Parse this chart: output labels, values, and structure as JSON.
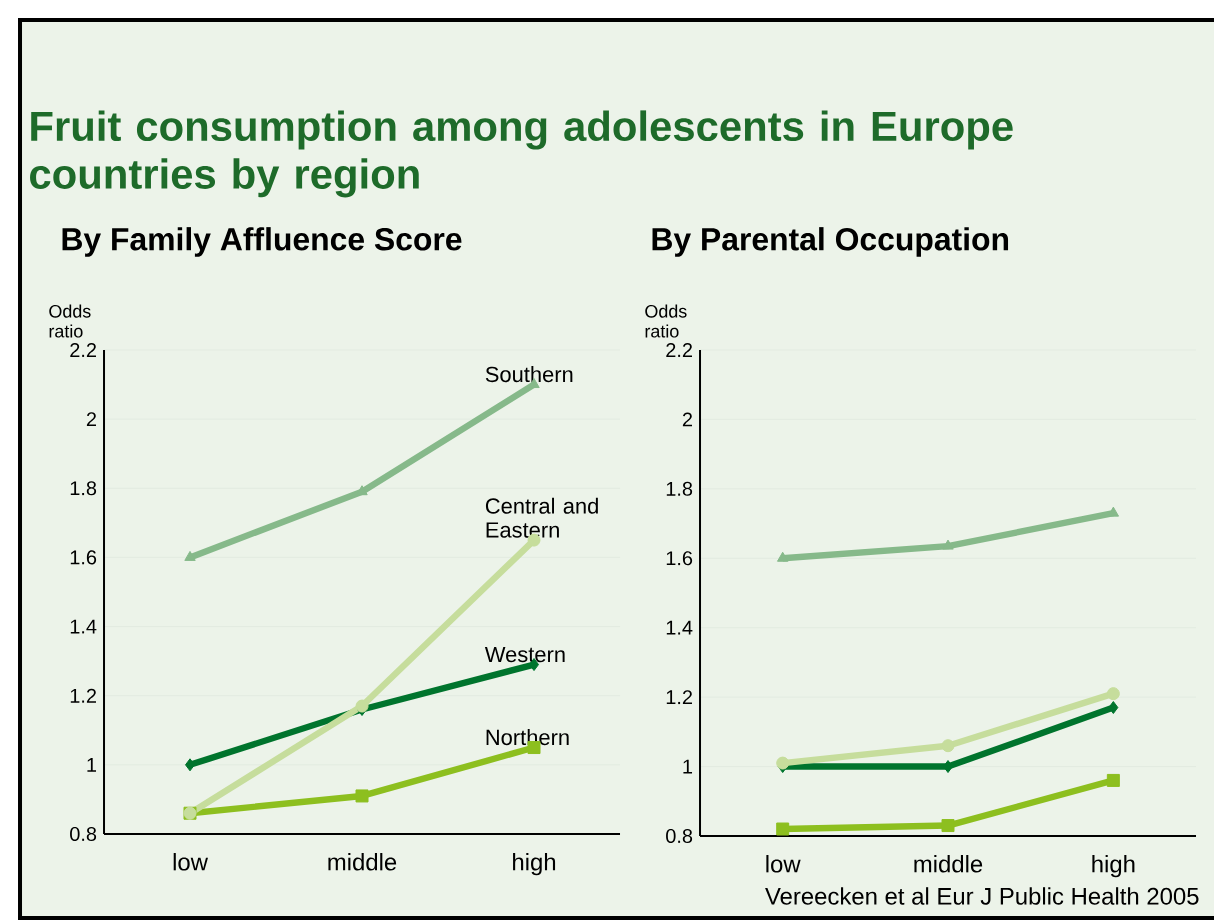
{
  "chart_data": [
    {
      "type": "line",
      "title": "Fruit consumption among adolescents in Europe countries by region",
      "subtitle": "By Family Affluence Score",
      "ylabel": "Odds ratio",
      "categories": [
        "low",
        "middle",
        "high"
      ],
      "ylim": [
        0.8,
        2.2
      ],
      "yticks": [
        0.8,
        1,
        1.2,
        1.4,
        1.6,
        1.8,
        2,
        2.2
      ],
      "grid": "y",
      "legend": false,
      "series": [
        {
          "name": "Southern",
          "color": "#86b98a",
          "marker": "triangle",
          "values": [
            1.6,
            1.79,
            2.1
          ]
        },
        {
          "name": "Central and Eastern",
          "color": "#c6dd9c",
          "marker": "circle",
          "values": [
            0.86,
            1.17,
            1.65
          ]
        },
        {
          "name": "Western",
          "color": "#00742d",
          "marker": "diamond",
          "values": [
            1.0,
            1.16,
            1.29
          ]
        },
        {
          "name": "Northern",
          "color": "#8dbf1f",
          "marker": "square",
          "values": [
            0.86,
            0.91,
            1.05
          ]
        }
      ]
    },
    {
      "type": "line",
      "subtitle": "By Parental Occupation",
      "ylabel": "Odds ratio",
      "categories": [
        "low",
        "middle",
        "high"
      ],
      "ylim": [
        0.8,
        2.2
      ],
      "yticks": [
        0.8,
        1,
        1.2,
        1.4,
        1.6,
        1.8,
        2,
        2.2
      ],
      "grid": "y",
      "legend": false,
      "annotations": [
        "Vereecken et al Eur J Public Health 2005"
      ],
      "series": [
        {
          "color": "#86b98a",
          "marker": "triangle",
          "values": [
            1.6,
            1.635,
            1.73
          ]
        },
        {
          "color": "#c6dd9c",
          "marker": "circle",
          "values": [
            1.01,
            1.06,
            1.21
          ]
        },
        {
          "color": "#00742d",
          "marker": "diamond",
          "values": [
            1.0,
            1.0,
            1.17
          ]
        },
        {
          "color": "#8dbf1f",
          "marker": "square",
          "values": [
            0.82,
            0.83,
            0.96
          ]
        }
      ]
    }
  ]
}
